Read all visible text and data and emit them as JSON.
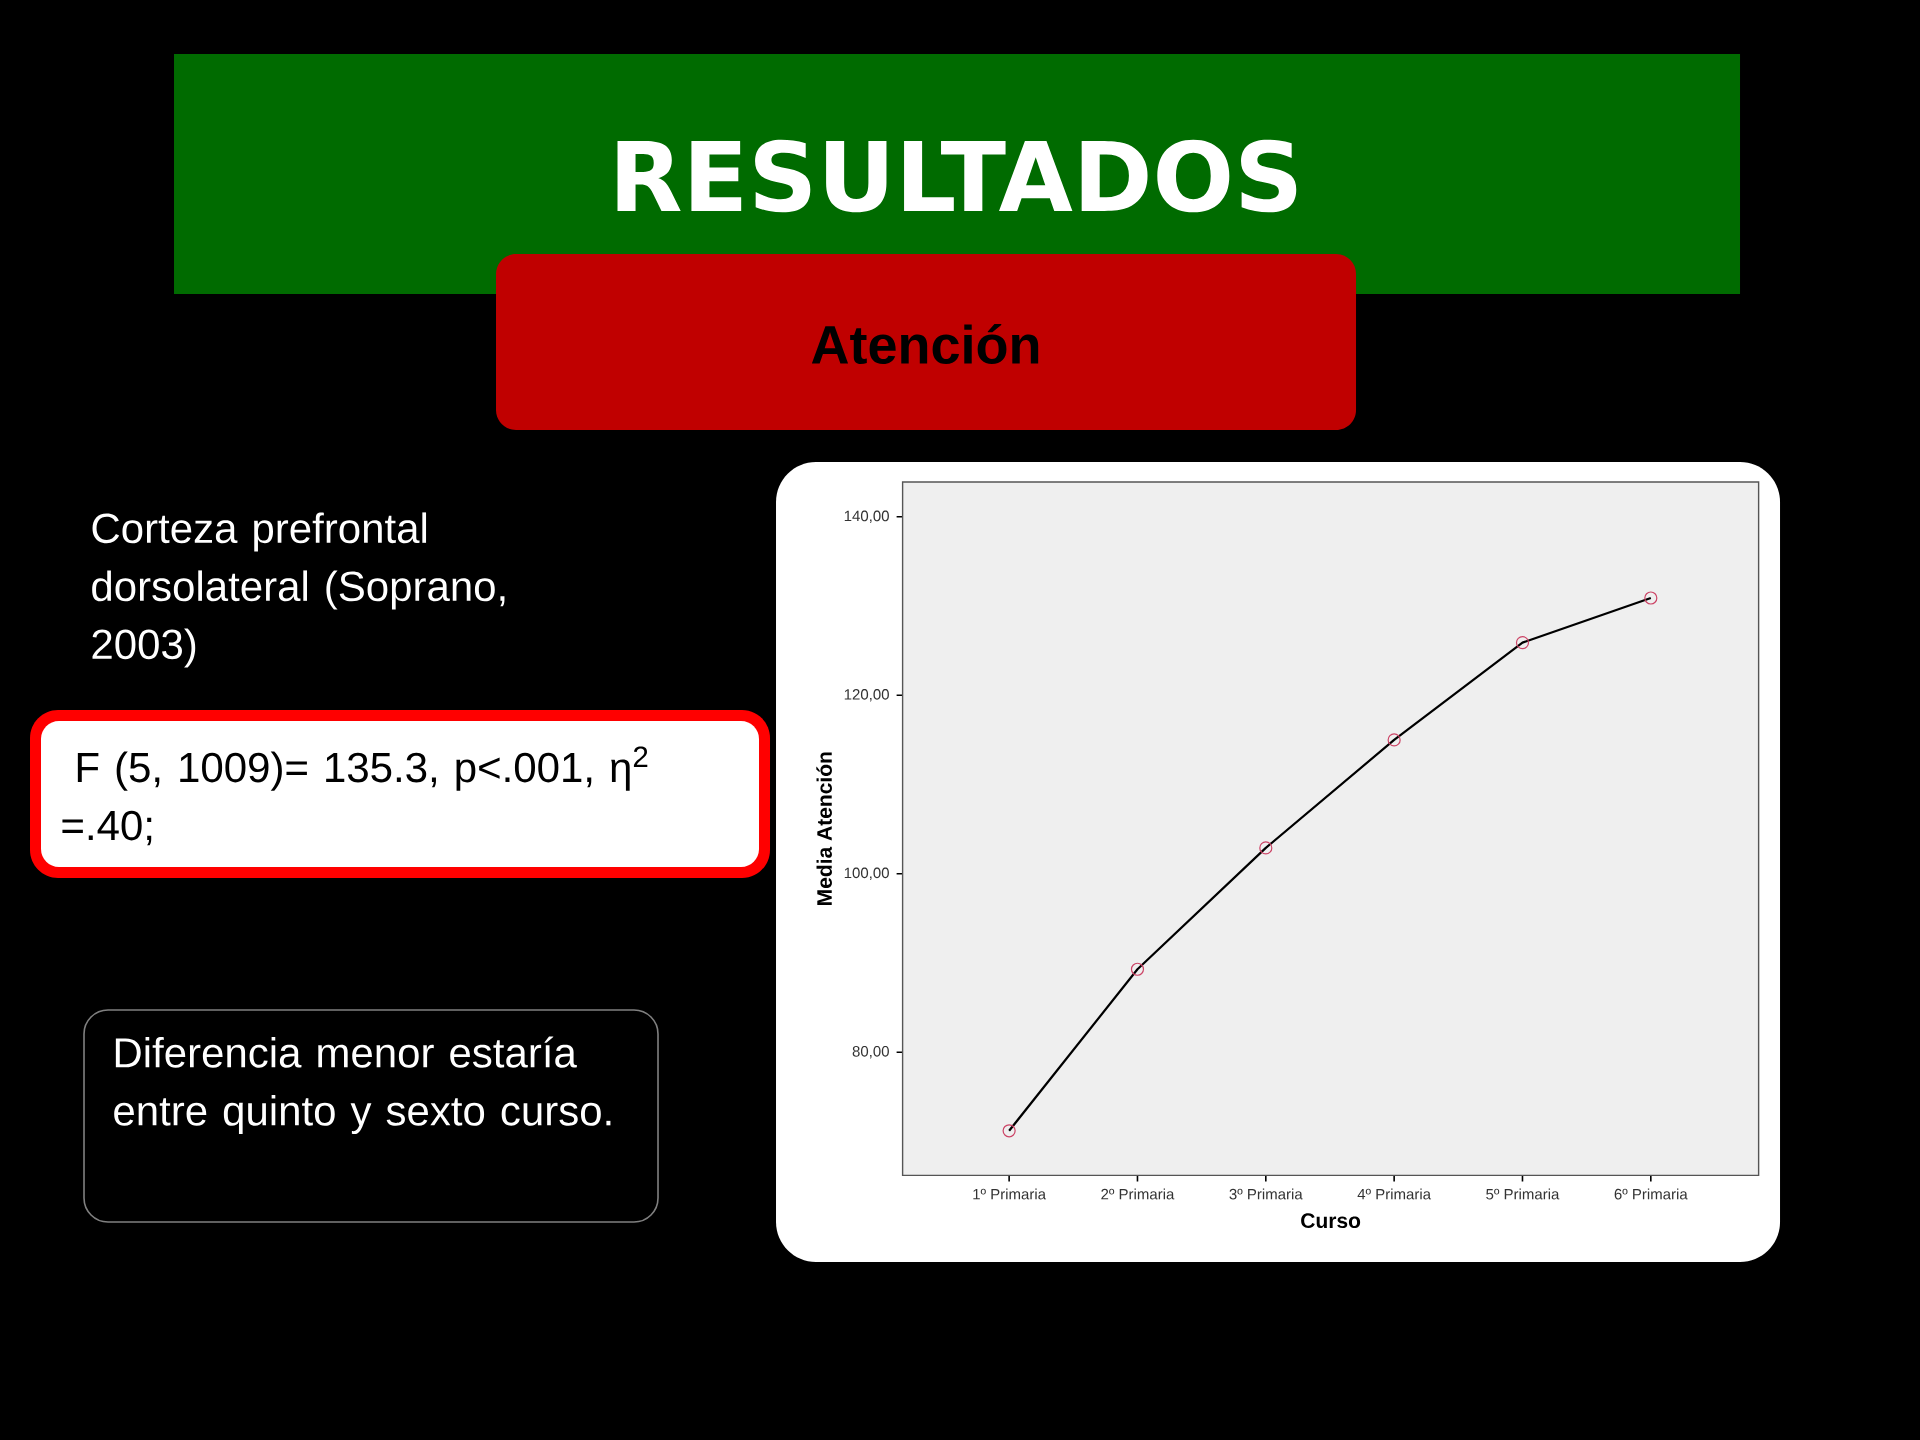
{
  "chart_data": {
    "type": "line",
    "title": "RESULTADOS",
    "subtitle": "Atención",
    "xlabel": "Curso",
    "ylabel": "Media Atención",
    "categories": [
      "1º Primaria",
      "2º Primaria",
      "3º Primaria",
      "4º Primaria",
      "5º Primaria",
      "6º Primaria"
    ],
    "series": [
      {
        "color": "#000000",
        "colors": [
          "#cc4466",
          "#cc4466",
          "#cc4466",
          "#cc4466",
          "#cc4466",
          "#cc4466"
        ],
        "values": [
          71.2,
          89.3,
          102.9,
          115.0,
          125.9,
          130.9
        ]
      }
    ],
    "ylim": [
      66.2,
      143.9
    ],
    "yticks": [
      {
        "value": 80,
        "label": "80,00"
      },
      {
        "value": 100,
        "label": "100,00"
      },
      {
        "value": 120,
        "label": "120,00"
      },
      {
        "value": 140,
        "label": "140,00"
      }
    ],
    "marker": "circle",
    "line_style": "solid",
    "annotations": [
      "Corteza prefrontal dorsolateral (Soprano, 2003)",
      " F (5, 1009)= 135.3, p<.001, η$^{2}$ =.40;",
      "Diferencia menor estaría entre quinto y sexto curso."
    ]
  }
}
